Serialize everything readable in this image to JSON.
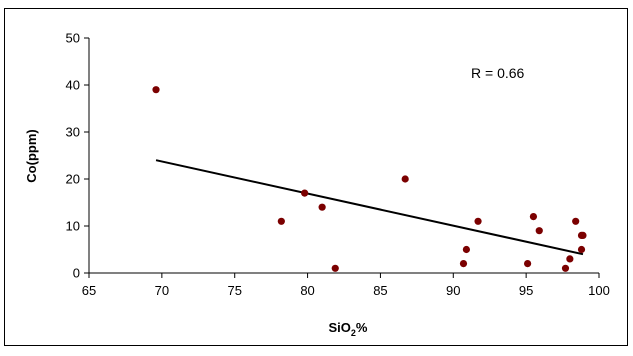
{
  "chart_data": {
    "type": "scatter",
    "xlabel_main": "SiO",
    "xlabel_sub": "2",
    "xlabel_suffix": "%",
    "ylabel": "Co(ppm)",
    "xlim": [
      65,
      100
    ],
    "ylim": [
      0,
      50
    ],
    "x_ticks": [
      "65",
      "70",
      "75",
      "80",
      "85",
      "90",
      "95",
      "100"
    ],
    "y_ticks": [
      "0",
      "10",
      "20",
      "30",
      "40",
      "50"
    ],
    "grid": false,
    "annotation": "R = 0.66",
    "point_color": "#7b0000",
    "points": [
      {
        "x": 69.6,
        "y": 39
      },
      {
        "x": 78.2,
        "y": 11
      },
      {
        "x": 79.8,
        "y": 17
      },
      {
        "x": 81.0,
        "y": 14
      },
      {
        "x": 81.9,
        "y": 1
      },
      {
        "x": 86.7,
        "y": 20
      },
      {
        "x": 90.7,
        "y": 2
      },
      {
        "x": 90.9,
        "y": 5
      },
      {
        "x": 91.7,
        "y": 11
      },
      {
        "x": 95.1,
        "y": 2
      },
      {
        "x": 95.5,
        "y": 12
      },
      {
        "x": 95.9,
        "y": 9
      },
      {
        "x": 97.7,
        "y": 1
      },
      {
        "x": 98.0,
        "y": 3
      },
      {
        "x": 98.4,
        "y": 11
      },
      {
        "x": 98.8,
        "y": 5
      },
      {
        "x": 98.8,
        "y": 8
      },
      {
        "x": 98.9,
        "y": 8
      }
    ],
    "trendline": {
      "x": [
        69.6,
        98.9
      ],
      "y": [
        24,
        4
      ]
    }
  }
}
